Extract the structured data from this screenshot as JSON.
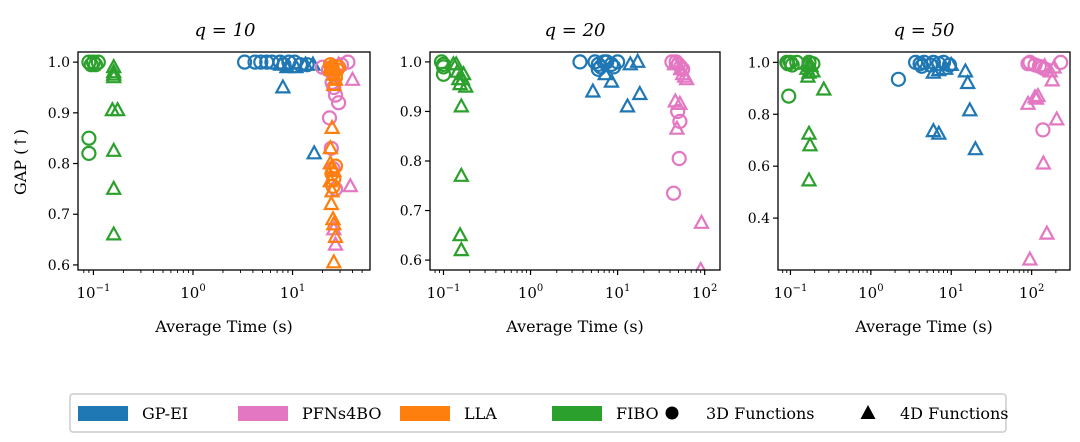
{
  "figure": {
    "ylabel_shared": "GAP (↑)",
    "xlabel_shared": "Average Time (s)"
  },
  "legend": {
    "entries": [
      {
        "kind": "patch",
        "label": "GP-EI",
        "color": "#1f77b4"
      },
      {
        "kind": "patch",
        "label": "PFNs4BO",
        "color": "#e377c2"
      },
      {
        "kind": "patch",
        "label": "LLA",
        "color": "#ff7f0e"
      },
      {
        "kind": "patch",
        "label": "FIBO",
        "color": "#2ca02c"
      },
      {
        "kind": "circle",
        "label": "3D Functions",
        "color": "#000000"
      },
      {
        "kind": "triangle",
        "label": "4D Functions",
        "color": "#000000"
      }
    ]
  },
  "chart_data": [
    {
      "type": "scatter",
      "title": "q = 10",
      "xlabel": "Average Time (s)",
      "ylabel": "GAP (↑)",
      "xscale": "log",
      "xlim": [
        0.07,
        60
      ],
      "ylim": [
        0.59,
        1.02
      ],
      "xticks": [
        {
          "v": 0.1,
          "base": "10",
          "exp": "−1"
        },
        {
          "v": 1,
          "base": "10",
          "exp": "0"
        },
        {
          "v": 10,
          "base": "10",
          "exp": "1"
        }
      ],
      "yticks": [
        {
          "v": 0.6,
          "label": "0.6"
        },
        {
          "v": 0.7,
          "label": "0.7"
        },
        {
          "v": 0.8,
          "label": "0.8"
        },
        {
          "v": 0.9,
          "label": "0.9"
        },
        {
          "v": 1.0,
          "label": "1.0"
        }
      ],
      "series": [
        {
          "name": "GP-EI",
          "color": "#1f77b4",
          "circles": [
            [
              3.3,
              1.0
            ],
            [
              4.2,
              1.0
            ],
            [
              4.8,
              1.0
            ],
            [
              5.5,
              1.0
            ],
            [
              6.2,
              1.0
            ],
            [
              7.5,
              1.0
            ],
            [
              8.2,
              0.995
            ],
            [
              9.2,
              1.0
            ],
            [
              10.5,
              1.0
            ],
            [
              12,
              0.995
            ],
            [
              14,
              0.995
            ]
          ],
          "triangles": [
            [
              7.6,
              0.995
            ],
            [
              8.8,
              0.99
            ],
            [
              10.8,
              0.99
            ],
            [
              13.5,
              0.995
            ],
            [
              16,
              0.995
            ],
            [
              8.0,
              0.95
            ],
            [
              16.5,
              0.82
            ]
          ]
        },
        {
          "name": "PFNs4BO",
          "color": "#e377c2",
          "circles": [
            [
              20,
              0.99
            ],
            [
              23,
              0.985
            ],
            [
              25,
              0.96
            ],
            [
              26,
              0.95
            ],
            [
              27,
              0.935
            ],
            [
              29,
              0.92
            ],
            [
              31,
              0.995
            ],
            [
              36,
              1.0
            ],
            [
              23.5,
              0.89
            ],
            [
              24.5,
              0.83
            ],
            [
              25.5,
              0.79
            ],
            [
              27,
              0.75
            ]
          ],
          "triangles": [
            [
              40,
              0.965
            ],
            [
              38,
              0.755
            ],
            [
              26,
              0.67
            ],
            [
              27,
              0.64
            ],
            [
              29,
              0.995
            ]
          ]
        },
        {
          "name": "LLA",
          "color": "#ff7f0e",
          "circles": [
            [
              24,
              0.995
            ],
            [
              25,
              0.99
            ],
            [
              26,
              0.98
            ],
            [
              27,
              0.97
            ],
            [
              28,
              0.985
            ],
            [
              29,
              0.99
            ],
            [
              25,
              0.78
            ],
            [
              26,
              0.77
            ],
            [
              27,
              0.795
            ],
            [
              25.5,
              0.755
            ]
          ],
          "triangles": [
            [
              24.5,
              0.985
            ],
            [
              26,
              0.975
            ],
            [
              24,
              0.99
            ],
            [
              24,
              0.8
            ],
            [
              25,
              0.79
            ],
            [
              26,
              0.785
            ],
            [
              24,
              0.765
            ],
            [
              25,
              0.745
            ],
            [
              24.5,
              0.72
            ],
            [
              25.5,
              0.69
            ],
            [
              26,
              0.68
            ],
            [
              27,
              0.655
            ],
            [
              26,
              0.605
            ],
            [
              25,
              0.87
            ],
            [
              24,
              0.83
            ],
            [
              26,
              0.955
            ],
            [
              27,
              0.965
            ]
          ]
        },
        {
          "name": "FIBO",
          "color": "#2ca02c",
          "circles": [
            [
              0.09,
              1.0
            ],
            [
              0.095,
              0.995
            ],
            [
              0.1,
              1.0
            ],
            [
              0.105,
              0.995
            ],
            [
              0.112,
              1.0
            ],
            [
              0.09,
              0.85
            ],
            [
              0.09,
              0.82
            ]
          ],
          "triangles": [
            [
              0.16,
              0.99
            ],
            [
              0.16,
              0.98
            ],
            [
              0.16,
              0.975
            ],
            [
              0.16,
              0.97
            ],
            [
              0.155,
              0.905
            ],
            [
              0.175,
              0.905
            ],
            [
              0.16,
              0.825
            ],
            [
              0.16,
              0.75
            ],
            [
              0.16,
              0.66
            ]
          ]
        }
      ]
    },
    {
      "type": "scatter",
      "title": "q = 20",
      "xlabel": "Average Time (s)",
      "ylabel": "",
      "xscale": "log",
      "xlim": [
        0.07,
        150
      ],
      "ylim": [
        0.58,
        1.02
      ],
      "xticks": [
        {
          "v": 0.1,
          "base": "10",
          "exp": "−1"
        },
        {
          "v": 1,
          "base": "10",
          "exp": "0"
        },
        {
          "v": 10,
          "base": "10",
          "exp": "1"
        },
        {
          "v": 100,
          "base": "10",
          "exp": "2"
        }
      ],
      "yticks": [
        {
          "v": 0.6,
          "label": "0.6"
        },
        {
          "v": 0.7,
          "label": "0.7"
        },
        {
          "v": 0.8,
          "label": "0.8"
        },
        {
          "v": 0.9,
          "label": "0.9"
        },
        {
          "v": 1.0,
          "label": "1.0"
        }
      ],
      "series": [
        {
          "name": "GP-EI",
          "color": "#1f77b4",
          "circles": [
            [
              3.7,
              1.0
            ],
            [
              5.5,
              1.0
            ],
            [
              6,
              0.995
            ],
            [
              6.4,
              0.99
            ],
            [
              7,
              1.0
            ],
            [
              7.5,
              1.0
            ],
            [
              8.5,
              0.995
            ],
            [
              9,
              0.99
            ],
            [
              10,
              1.0
            ],
            [
              6,
              0.985
            ]
          ],
          "triangles": [
            [
              5.2,
              0.94
            ],
            [
              7.2,
              0.975
            ],
            [
              8.5,
              0.96
            ],
            [
              14,
              0.995
            ],
            [
              17,
              1.0
            ],
            [
              13,
              0.91
            ],
            [
              18,
              0.935
            ]
          ]
        },
        {
          "name": "PFNs4BO",
          "color": "#e377c2",
          "circles": [
            [
              42,
              1.0
            ],
            [
              47,
              1.0
            ],
            [
              50,
              0.995
            ],
            [
              53,
              0.99
            ],
            [
              56,
              0.985
            ],
            [
              49,
              0.9
            ],
            [
              52,
              0.88
            ],
            [
              51,
              0.805
            ],
            [
              44,
              0.735
            ]
          ],
          "triangles": [
            [
              45,
              0.995
            ],
            [
              53,
              0.985
            ],
            [
              56,
              0.975
            ],
            [
              59,
              0.97
            ],
            [
              62,
              0.965
            ],
            [
              46,
              0.92
            ],
            [
              52,
              0.915
            ],
            [
              48,
              0.865
            ],
            [
              92,
              0.675
            ],
            [
              90,
              0.58
            ]
          ]
        },
        {
          "name": "LLA",
          "color": "#ff7f0e",
          "circles": [],
          "triangles": []
        },
        {
          "name": "FIBO",
          "color": "#2ca02c",
          "circles": [
            [
              0.095,
              1.0
            ],
            [
              0.1,
              0.995
            ],
            [
              0.1,
              0.99
            ],
            [
              0.1,
              0.975
            ]
          ],
          "triangles": [
            [
              0.13,
              0.995
            ],
            [
              0.145,
              0.98
            ],
            [
              0.15,
              0.965
            ],
            [
              0.155,
              0.955
            ],
            [
              0.165,
              0.965
            ],
            [
              0.18,
              0.95
            ],
            [
              0.16,
              0.91
            ],
            [
              0.16,
              0.77
            ],
            [
              0.155,
              0.65
            ],
            [
              0.16,
              0.62
            ],
            [
              0.14,
              0.995
            ],
            [
              0.17,
              0.975
            ]
          ]
        }
      ]
    },
    {
      "type": "scatter",
      "title": "q = 50",
      "xlabel": "Average Time (s)",
      "ylabel": "",
      "xscale": "log",
      "xlim": [
        0.07,
        300
      ],
      "ylim": [
        0.2,
        1.04
      ],
      "xticks": [
        {
          "v": 0.1,
          "base": "10",
          "exp": "−1"
        },
        {
          "v": 1,
          "base": "10",
          "exp": "0"
        },
        {
          "v": 10,
          "base": "10",
          "exp": "1"
        },
        {
          "v": 100,
          "base": "10",
          "exp": "2"
        }
      ],
      "yticks": [
        {
          "v": 0.4,
          "label": "0.4"
        },
        {
          "v": 0.6,
          "label": "0.6"
        },
        {
          "v": 0.8,
          "label": "0.8"
        },
        {
          "v": 1.0,
          "label": "1.0"
        }
      ],
      "series": [
        {
          "name": "GP-EI",
          "color": "#1f77b4",
          "circles": [
            [
              2.2,
              0.935
            ],
            [
              3.6,
              1.0
            ],
            [
              4.1,
              0.995
            ],
            [
              4.6,
              1.0
            ],
            [
              6,
              1.0
            ],
            [
              7,
              0.995
            ],
            [
              8,
              1.0
            ],
            [
              9.5,
              0.99
            ],
            [
              5.5,
              0.99
            ],
            [
              4.3,
              0.985
            ]
          ],
          "triangles": [
            [
              6,
              0.96
            ],
            [
              7,
              0.97
            ],
            [
              8.5,
              0.975
            ],
            [
              10,
              0.99
            ],
            [
              15,
              0.965
            ],
            [
              16,
              0.92
            ],
            [
              17,
              0.815
            ],
            [
              6,
              0.735
            ],
            [
              7,
              0.725
            ],
            [
              20,
              0.665
            ]
          ]
        },
        {
          "name": "PFNs4BO",
          "color": "#e377c2",
          "circles": [
            [
              90,
              0.995
            ],
            [
              95,
              1.0
            ],
            [
              110,
              0.99
            ],
            [
              125,
              0.985
            ],
            [
              135,
              0.98
            ],
            [
              145,
              0.975
            ],
            [
              230,
              1.0
            ],
            [
              138,
              0.74
            ]
          ],
          "triangles": [
            [
              90,
              0.84
            ],
            [
              110,
              0.865
            ],
            [
              115,
              0.86
            ],
            [
              120,
              0.87
            ],
            [
              145,
              0.985
            ],
            [
              170,
              0.965
            ],
            [
              180,
              0.93
            ],
            [
              190,
              0.98
            ],
            [
              205,
              0.78
            ],
            [
              140,
              0.61
            ],
            [
              155,
              0.34
            ],
            [
              95,
              0.24
            ]
          ]
        },
        {
          "name": "LLA",
          "color": "#ff7f0e",
          "circles": [],
          "triangles": []
        },
        {
          "name": "FIBO",
          "color": "#2ca02c",
          "circles": [
            [
              0.09,
              1.0
            ],
            [
              0.093,
              0.995
            ],
            [
              0.1,
              1.0
            ],
            [
              0.105,
              0.99
            ],
            [
              0.12,
              1.0
            ],
            [
              0.17,
              1.0
            ],
            [
              0.19,
              0.995
            ],
            [
              0.095,
              0.87
            ]
          ],
          "triangles": [
            [
              0.16,
              0.995
            ],
            [
              0.175,
              0.99
            ],
            [
              0.18,
              0.985
            ],
            [
              0.16,
              0.975
            ],
            [
              0.17,
              0.96
            ],
            [
              0.19,
              0.965
            ],
            [
              0.165,
              0.945
            ],
            [
              0.26,
              0.895
            ],
            [
              0.17,
              0.725
            ],
            [
              0.175,
              0.68
            ],
            [
              0.17,
              0.545
            ]
          ]
        }
      ]
    }
  ]
}
